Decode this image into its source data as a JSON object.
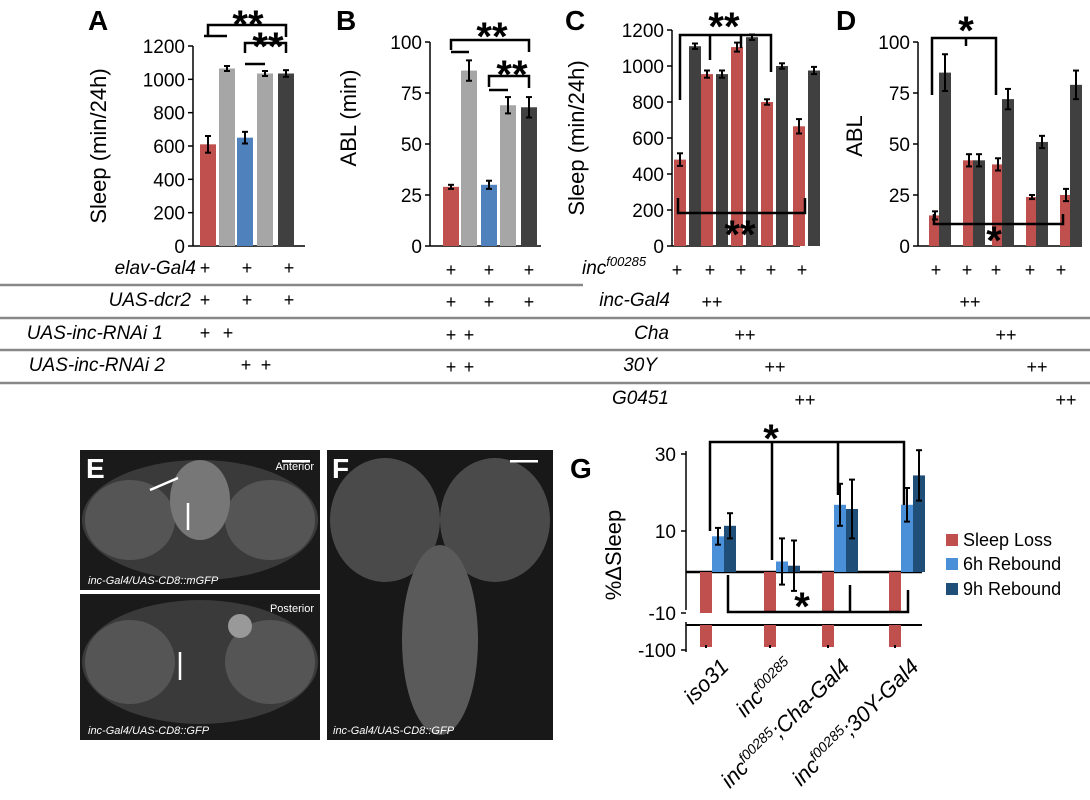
{
  "colors": {
    "red": "#c0504d",
    "light_gray": "#a6a6a6",
    "blue": "#4f81bd",
    "gray": "#a6a6a6",
    "dark": "#404040",
    "light_blue": "#4a90d9",
    "navy": "#1f4e79"
  },
  "panel_letters": {
    "a": "A",
    "b": "B",
    "c": "C",
    "d": "D",
    "e": "E",
    "f": "F",
    "g": "G"
  },
  "significance": {
    "double": "**",
    "single": "*"
  },
  "plus_sign": "+",
  "double_plus": "++",
  "genotype_table_left": {
    "rows": [
      {
        "label": "elav-Gal4",
        "marks": [
          "+",
          "+",
          "+"
        ]
      },
      {
        "label": "UAS-dcr2",
        "marks": [
          "+",
          "+",
          "+"
        ]
      },
      {
        "label": "UAS-inc-RNAi 1",
        "marks": [
          "+",
          "+"
        ]
      },
      {
        "label": "UAS-inc-RNAi 2",
        "marks": [
          "+",
          "+"
        ]
      }
    ]
  },
  "genotype_table_right": {
    "inc_label_base": "inc",
    "inc_label_sup": "f00285",
    "rows": [
      {
        "label": "inc-Gal4"
      },
      {
        "label": "Cha"
      },
      {
        "label": "30Y"
      },
      {
        "label": "G0451"
      }
    ]
  },
  "micrographs": {
    "e_top_caption": "inc-Gal4/UAS-CD8::mGFP",
    "e_top_tag": "Anterior",
    "e_bottom_caption": "inc-Gal4/UAS-CD8::GFP",
    "e_bottom_tag": "Posterior",
    "f_caption": "inc-Gal4/UAS-CD8::GFP"
  },
  "chart_data": [
    {
      "panel": "A",
      "type": "bar",
      "ylabel": "Sleep (min/24h)",
      "ylim": [
        0,
        1200
      ],
      "yticks": [
        0,
        200,
        400,
        600,
        800,
        1000,
        1200
      ],
      "values": [
        610,
        1065,
        650,
        1035,
        1035
      ],
      "errors": [
        50,
        15,
        35,
        15,
        20
      ],
      "bar_colors": [
        "red",
        "light_gray",
        "blue",
        "gray",
        "dark"
      ],
      "significance": [
        {
          "label": "**"
        },
        {
          "label": "**"
        }
      ]
    },
    {
      "panel": "B",
      "type": "bar",
      "ylabel": "ABL (min)",
      "ylim": [
        0,
        100
      ],
      "yticks": [
        0,
        25,
        50,
        75,
        100
      ],
      "values": [
        29,
        86,
        30,
        69,
        68
      ],
      "errors": [
        1,
        5,
        2,
        4,
        5
      ],
      "bar_colors": [
        "red",
        "light_gray",
        "blue",
        "gray",
        "dark"
      ],
      "significance": [
        {
          "label": "**"
        },
        {
          "label": "**"
        }
      ]
    },
    {
      "panel": "C",
      "type": "bar",
      "ylabel": "Sleep (min/24h)",
      "ylim": [
        0,
        1200
      ],
      "yticks": [
        0,
        200,
        400,
        600,
        800,
        1000,
        1200
      ],
      "groups": [
        {
          "values": [
            480,
            1110
          ],
          "errors": [
            35,
            15
          ]
        },
        {
          "values": [
            955,
            955
          ],
          "errors": [
            20,
            20
          ]
        },
        {
          "values": [
            1105,
            1160
          ],
          "errors": [
            25,
            15
          ]
        },
        {
          "values": [
            800,
            1000
          ],
          "errors": [
            15,
            15
          ]
        },
        {
          "values": [
            665,
            975
          ],
          "errors": [
            40,
            20
          ]
        }
      ],
      "bar_colors": [
        "red",
        "dark"
      ],
      "significance": [
        {
          "label": "**"
        },
        {
          "label": "**"
        }
      ]
    },
    {
      "panel": "D",
      "type": "bar",
      "ylabel": "ABL",
      "ylim": [
        0,
        100
      ],
      "yticks": [
        0,
        25,
        50,
        75,
        100
      ],
      "groups": [
        {
          "values": [
            15,
            85
          ],
          "errors": [
            2,
            9
          ]
        },
        {
          "values": [
            42,
            42
          ],
          "errors": [
            3,
            3
          ]
        },
        {
          "values": [
            40,
            72
          ],
          "errors": [
            3,
            5
          ]
        },
        {
          "values": [
            24,
            51
          ],
          "errors": [
            1,
            3
          ]
        },
        {
          "values": [
            25,
            79
          ],
          "errors": [
            3,
            7
          ]
        }
      ],
      "bar_colors": [
        "red",
        "dark"
      ],
      "significance": [
        {
          "label": "*"
        },
        {
          "label": "*"
        }
      ]
    },
    {
      "panel": "G",
      "type": "bar",
      "ylabel": "%ΔSleep",
      "yticks_labels": [
        "-100",
        "-10",
        "10",
        "30"
      ],
      "categories": [
        "iso31",
        "incf00285",
        "incf00285;Cha-Gal4",
        "incf00285;30Y-Gal4"
      ],
      "category_labels": [
        {
          "base": "iso31",
          "sup": "",
          "rest": ""
        },
        {
          "base": "inc",
          "sup": "f00285",
          "rest": ""
        },
        {
          "base": "inc",
          "sup": "f00285",
          "rest": ";Cha-Gal4"
        },
        {
          "base": "inc",
          "sup": "f00285",
          "rest": ";30Y-Gal4"
        }
      ],
      "series": [
        {
          "name": "Sleep Loss",
          "values": [
            -96,
            -96,
            -96,
            -96
          ],
          "errors": [
            1,
            1,
            1,
            1
          ],
          "color": "red"
        },
        {
          "name": "6h Rebound",
          "values": [
            8.5,
            2.5,
            16,
            16
          ],
          "errors": [
            2,
            5.5,
            5,
            4
          ],
          "color": "light_blue"
        },
        {
          "name": "9h Rebound",
          "values": [
            11,
            1.5,
            15,
            23
          ],
          "errors": [
            3,
            6,
            7,
            6
          ],
          "color": "navy"
        }
      ],
      "significance": [
        {
          "label": "*"
        },
        {
          "label": "*"
        }
      ]
    }
  ]
}
